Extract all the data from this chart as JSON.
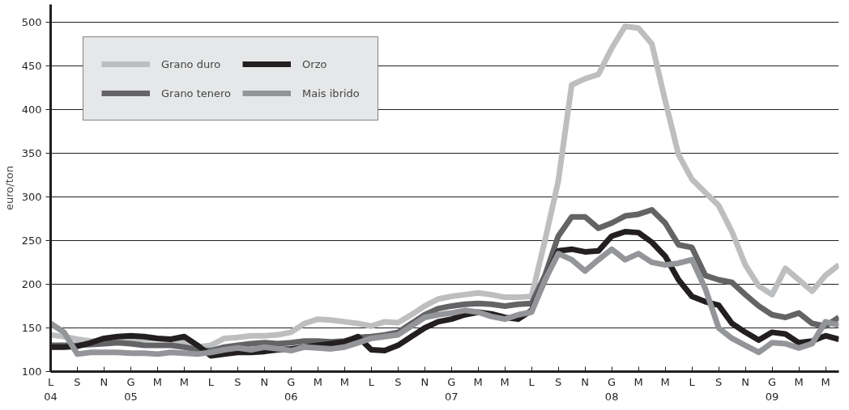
{
  "chart_data": {
    "type": "line",
    "ylabel": "euro/ton",
    "x": [
      "2004-07",
      "2004-08",
      "2004-09",
      "2004-10",
      "2004-11",
      "2004-12",
      "2005-01",
      "2005-02",
      "2005-03",
      "2005-04",
      "2005-05",
      "2005-06",
      "2005-07",
      "2005-08",
      "2005-09",
      "2005-10",
      "2005-11",
      "2005-12",
      "2006-01",
      "2006-02",
      "2006-03",
      "2006-04",
      "2006-05",
      "2006-06",
      "2006-07",
      "2006-08",
      "2006-09",
      "2006-10",
      "2006-11",
      "2006-12",
      "2007-01",
      "2007-02",
      "2007-03",
      "2007-04",
      "2007-05",
      "2007-06",
      "2007-07",
      "2007-08",
      "2007-09",
      "2007-10",
      "2007-11",
      "2007-12",
      "2008-01",
      "2008-02",
      "2008-03",
      "2008-04",
      "2008-05",
      "2008-06",
      "2008-07",
      "2008-08",
      "2008-09",
      "2008-10",
      "2008-11",
      "2008-12",
      "2009-01",
      "2009-02",
      "2009-03",
      "2009-04",
      "2009-05",
      "2009-06"
    ],
    "series": [
      {
        "name": "Grano duro",
        "color": "#bdbec0",
        "values": [
          142,
          140,
          137,
          135,
          134,
          135,
          136,
          137,
          138,
          136,
          133,
          128,
          130,
          138,
          139,
          141,
          141,
          142,
          145,
          155,
          160,
          159,
          157,
          155,
          152,
          157,
          156,
          165,
          175,
          183,
          186,
          188,
          190,
          188,
          185,
          185,
          186,
          250,
          318,
          428,
          435,
          440,
          470,
          495,
          493,
          475,
          410,
          348,
          320,
          305,
          290,
          260,
          222,
          198,
          188,
          218,
          205,
          192,
          210,
          222
        ]
      },
      {
        "name": "Grano tenero",
        "color": "#646466",
        "values": [
          130,
          130,
          130,
          131,
          132,
          133,
          132,
          130,
          130,
          130,
          128,
          125,
          124,
          128,
          130,
          132,
          133,
          132,
          133,
          135,
          135,
          134,
          135,
          139,
          140,
          142,
          145,
          155,
          165,
          172,
          175,
          177,
          178,
          177,
          175,
          177,
          178,
          210,
          255,
          277,
          277,
          264,
          270,
          278,
          280,
          285,
          270,
          245,
          242,
          210,
          205,
          202,
          188,
          175,
          165,
          162,
          167,
          155,
          152,
          162
        ]
      },
      {
        "name": "Orzo",
        "color": "#231f20",
        "values": [
          128,
          128,
          129,
          133,
          138,
          140,
          141,
          140,
          138,
          137,
          140,
          130,
          118,
          120,
          122,
          122,
          123,
          125,
          126,
          128,
          130,
          132,
          134,
          140,
          125,
          124,
          130,
          140,
          150,
          157,
          160,
          165,
          168,
          166,
          162,
          160,
          170,
          205,
          238,
          240,
          237,
          238,
          255,
          260,
          259,
          248,
          232,
          205,
          186,
          180,
          176,
          155,
          145,
          136,
          145,
          143,
          133,
          135,
          141,
          137
        ]
      },
      {
        "name": "Mais ibrido",
        "color": "#939598",
        "values": [
          155,
          145,
          120,
          122,
          122,
          122,
          121,
          121,
          120,
          122,
          121,
          120,
          122,
          125,
          127,
          125,
          128,
          126,
          124,
          128,
          127,
          126,
          128,
          133,
          138,
          140,
          142,
          152,
          162,
          165,
          167,
          170,
          168,
          163,
          160,
          165,
          168,
          205,
          235,
          228,
          215,
          228,
          240,
          228,
          235,
          225,
          222,
          224,
          228,
          195,
          150,
          138,
          130,
          122,
          133,
          132,
          127,
          132,
          157,
          153
        ]
      }
    ],
    "xlim": [
      "2004-07",
      "2009-06"
    ],
    "xticks": [
      {
        "value": "2004-07",
        "label": "L\n04"
      },
      {
        "value": "2004-09",
        "label": "S"
      },
      {
        "value": "2004-11",
        "label": "N"
      },
      {
        "value": "2005-01",
        "label": "G\n05"
      },
      {
        "value": "2005-03",
        "label": "M"
      },
      {
        "value": "2005-05",
        "label": "M"
      },
      {
        "value": "2005-07",
        "label": "L"
      },
      {
        "value": "2005-09",
        "label": "S"
      },
      {
        "value": "2005-11",
        "label": "N"
      },
      {
        "value": "2006-01",
        "label": "G\n06"
      },
      {
        "value": "2006-03",
        "label": "M"
      },
      {
        "value": "2006-05",
        "label": "M"
      },
      {
        "value": "2006-07",
        "label": "L"
      },
      {
        "value": "2006-09",
        "label": "S"
      },
      {
        "value": "2006-11",
        "label": "N"
      },
      {
        "value": "2007-01",
        "label": "G\n07"
      },
      {
        "value": "2007-03",
        "label": "M"
      },
      {
        "value": "2007-05",
        "label": "M"
      },
      {
        "value": "2007-07",
        "label": "L"
      },
      {
        "value": "2007-09",
        "label": "S"
      },
      {
        "value": "2007-11",
        "label": "N"
      },
      {
        "value": "2008-01",
        "label": "G\n08"
      },
      {
        "value": "2008-03",
        "label": "M"
      },
      {
        "value": "2008-05",
        "label": "M"
      },
      {
        "value": "2008-07",
        "label": "L"
      },
      {
        "value": "2008-09",
        "label": "S"
      },
      {
        "value": "2008-11",
        "label": "N"
      },
      {
        "value": "2009-01",
        "label": "G\n09"
      },
      {
        "value": "2009-03",
        "label": "M"
      },
      {
        "value": "2009-05",
        "label": "M"
      }
    ],
    "ylim": [
      100,
      520
    ],
    "yticks": [
      100,
      150,
      200,
      250,
      300,
      350,
      400,
      450,
      500
    ],
    "grid": "y",
    "legend": "top left",
    "marker": "none",
    "line_style": "solid"
  }
}
